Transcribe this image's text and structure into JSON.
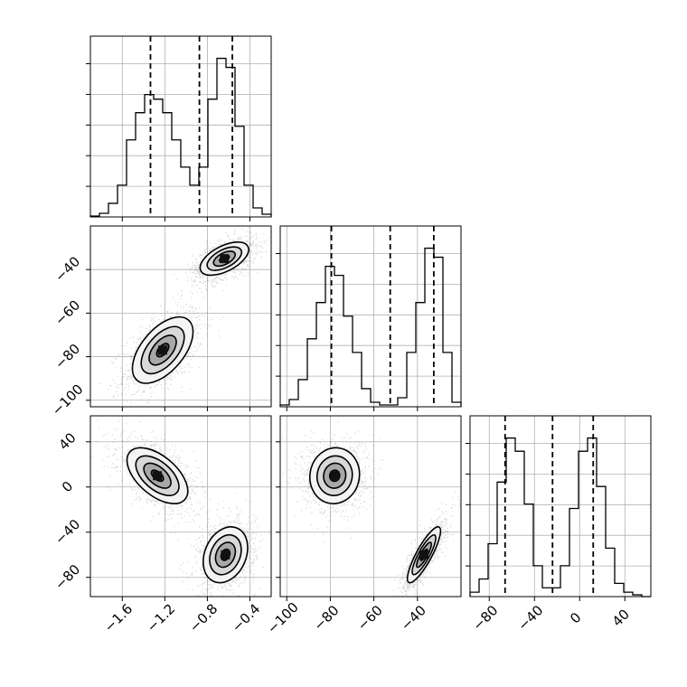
{
  "chart_data": {
    "type": "corner",
    "params": [
      {
        "ticks": [
          -1.6,
          -1.2,
          -0.8,
          -0.4
        ],
        "tick_labels": [
          "−1.6",
          "−1.2",
          "−0.8",
          "−0.4"
        ],
        "range": [
          -1.9,
          -0.2
        ]
      },
      {
        "ticks": [
          -100,
          -80,
          -60,
          -40
        ],
        "tick_labels": [
          "−100",
          "−80",
          "−60",
          "−40"
        ],
        "range": [
          -103,
          -20
        ]
      },
      {
        "ticks": [
          -80,
          -40,
          0,
          40
        ],
        "tick_labels": [
          "−80",
          "−40",
          "0",
          "40"
        ],
        "range": [
          -97,
          63
        ]
      }
    ],
    "histograms": [
      {
        "param": 0,
        "edges": [
          -1.9,
          -1.815,
          -1.73,
          -1.645,
          -1.56,
          -1.475,
          -1.39,
          -1.305,
          -1.22,
          -1.135,
          -1.05,
          -0.965,
          -0.88,
          -0.795,
          -0.71,
          -0.625,
          -0.54,
          -0.455,
          -0.37,
          -0.285,
          -0.2
        ],
        "counts": [
          1,
          4,
          15,
          35,
          85,
          115,
          135,
          130,
          115,
          85,
          55,
          35,
          55,
          130,
          175,
          165,
          100,
          35,
          10,
          3
        ],
        "quantiles": [
          -1.335,
          -0.875,
          -0.565
        ]
      },
      {
        "param": 1,
        "edges": [
          -103.0,
          -98.85,
          -94.7,
          -90.55,
          -86.4,
          -82.25,
          -78.1,
          -73.95,
          -69.8,
          -65.65,
          -61.5,
          -57.35,
          -53.2,
          -49.05,
          -44.9,
          -40.75,
          -36.6,
          -32.45,
          -28.3,
          -24.15,
          -20.0
        ],
        "counts": [
          2,
          8,
          30,
          75,
          115,
          155,
          145,
          100,
          60,
          20,
          5,
          2,
          2,
          10,
          60,
          115,
          175,
          165,
          60,
          5
        ],
        "quantiles": [
          -79.5,
          -52.5,
          -32.5
        ]
      },
      {
        "param": 2,
        "edges": [
          -97,
          -89,
          -81,
          -73,
          -65,
          -57,
          -49,
          -41,
          -33,
          -25,
          -17,
          -9,
          -1,
          7,
          15,
          23,
          31,
          39,
          47,
          55,
          63
        ],
        "counts": [
          5,
          20,
          60,
          130,
          180,
          165,
          105,
          35,
          10,
          10,
          35,
          100,
          165,
          180,
          125,
          55,
          15,
          5,
          2,
          0
        ],
        "quantiles": [
          -66,
          -24,
          12
        ]
      }
    ],
    "scatter_panels": [
      {
        "x_param": 0,
        "y_param": 1,
        "clusters": [
          {
            "center": [
              -1.22,
              -77
            ],
            "spread": [
              0.15,
              8
            ],
            "corr": 0.55,
            "n": 1200
          },
          {
            "center": [
              -0.64,
              -35
            ],
            "spread": [
              0.12,
              4
            ],
            "corr": 0.55,
            "n": 1200
          }
        ]
      },
      {
        "x_param": 0,
        "y_param": 2,
        "clusters": [
          {
            "center": [
              -1.27,
              10
            ],
            "spread": [
              0.15,
              13
            ],
            "corr": -0.55,
            "n": 1200
          },
          {
            "center": [
              -0.63,
              -60
            ],
            "spread": [
              0.11,
              13
            ],
            "corr": 0.25,
            "n": 1200
          }
        ]
      },
      {
        "x_param": 1,
        "y_param": 2,
        "clusters": [
          {
            "center": [
              -78,
              10
            ],
            "spread": [
              6,
              13
            ],
            "corr": 0.05,
            "n": 1200
          },
          {
            "center": [
              -37,
              -60
            ],
            "spread": [
              4,
              13
            ],
            "corr": 0.85,
            "n": 1200
          }
        ]
      }
    ],
    "grid": true,
    "title": "",
    "xlabel": "",
    "ylabel": ""
  }
}
